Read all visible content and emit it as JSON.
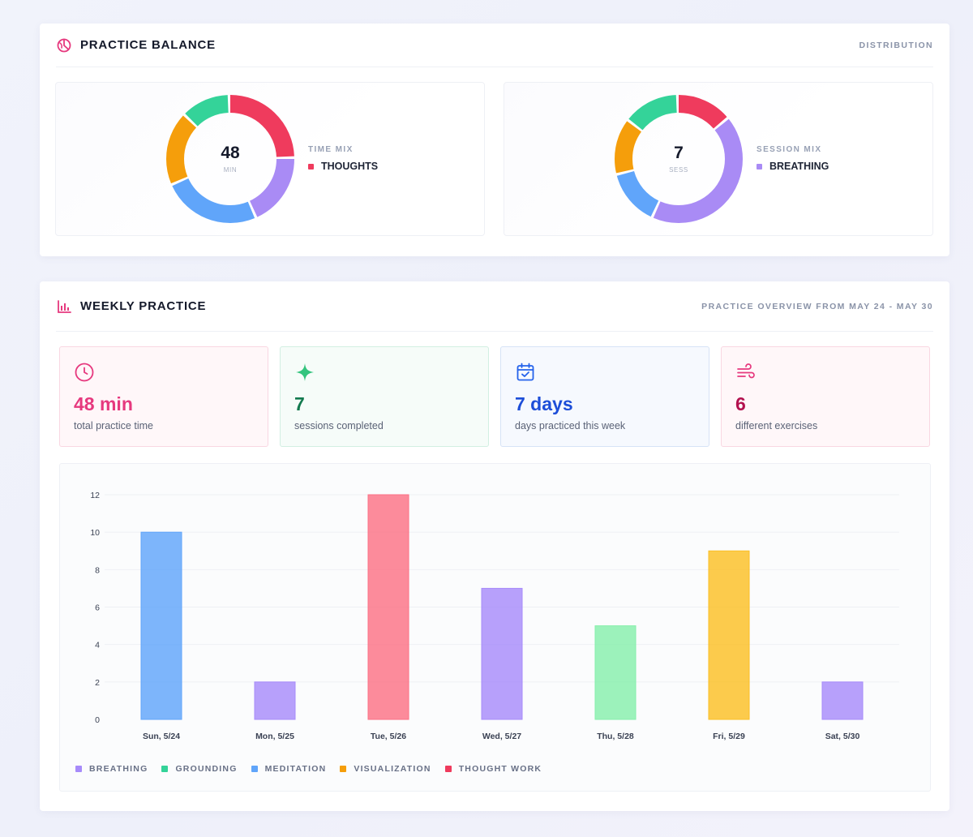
{
  "balance": {
    "title": "PRACTICE BALANCE",
    "subtitle": "DISTRIBUTION",
    "time_mix": {
      "value": "48",
      "unit": "MIN",
      "legend_title": "TIME MIX",
      "legend_item": "THOUGHTS",
      "legend_color": "#ef3b5d",
      "segments": [
        {
          "color": "#ef3b5d",
          "value": 12
        },
        {
          "color": "#a98bf5",
          "value": 9
        },
        {
          "color": "#60a5fa",
          "value": 12
        },
        {
          "color": "#f59e0b",
          "value": 9
        },
        {
          "color": "#34d399",
          "value": 6
        }
      ]
    },
    "session_mix": {
      "value": "7",
      "unit": "SESS",
      "legend_title": "SESSION MIX",
      "legend_item": "BREATHING",
      "legend_color": "#a98bf5",
      "segments": [
        {
          "color": "#ef3b5d",
          "value": 1
        },
        {
          "color": "#a98bf5",
          "value": 3
        },
        {
          "color": "#60a5fa",
          "value": 1
        },
        {
          "color": "#f59e0b",
          "value": 1
        },
        {
          "color": "#34d399",
          "value": 1
        }
      ]
    }
  },
  "weekly": {
    "title": "WEEKLY PRACTICE",
    "subtitle": "PRACTICE OVERVIEW FROM MAY 24 - MAY 30",
    "stats": {
      "time": {
        "value": "48 min",
        "label": "total practice time",
        "color": "#e6397e",
        "icon": "clock-icon"
      },
      "sessions": {
        "value": "7",
        "label": "sessions completed",
        "color": "#137a4f",
        "icon": "sparkle-icon"
      },
      "days": {
        "value": "7 days",
        "label": "days practiced this week",
        "color": "#1d4ed8",
        "icon": "calendar-icon"
      },
      "exercises": {
        "value": "6",
        "label": "different exercises",
        "color": "#b3124f",
        "icon": "wind-icon"
      }
    }
  },
  "chart_data": {
    "type": "bar",
    "categories": [
      "Sun, 5/24",
      "Mon, 5/25",
      "Tue, 5/26",
      "Wed, 5/27",
      "Thu, 5/28",
      "Fri, 5/29",
      "Sat, 5/30"
    ],
    "values": [
      10,
      2,
      12,
      7,
      5,
      9,
      2
    ],
    "bar_colors": [
      "#60a5fa",
      "#a78bfa",
      "#fb7185",
      "#a78bfa",
      "#86efac",
      "#fbbf24",
      "#a78bfa"
    ],
    "ylim": [
      0,
      12
    ],
    "yticks": [
      "0",
      "2",
      "4",
      "6",
      "8",
      "10",
      "12"
    ],
    "grid": true,
    "legend_position": "bottom-left",
    "legend": [
      {
        "label": "BREATHING",
        "color": "#a78bfa"
      },
      {
        "label": "GROUNDING",
        "color": "#34d399"
      },
      {
        "label": "MEDITATION",
        "color": "#60a5fa"
      },
      {
        "label": "VISUALIZATION",
        "color": "#f59e0b"
      },
      {
        "label": "THOUGHT WORK",
        "color": "#ef3b5d"
      }
    ]
  }
}
